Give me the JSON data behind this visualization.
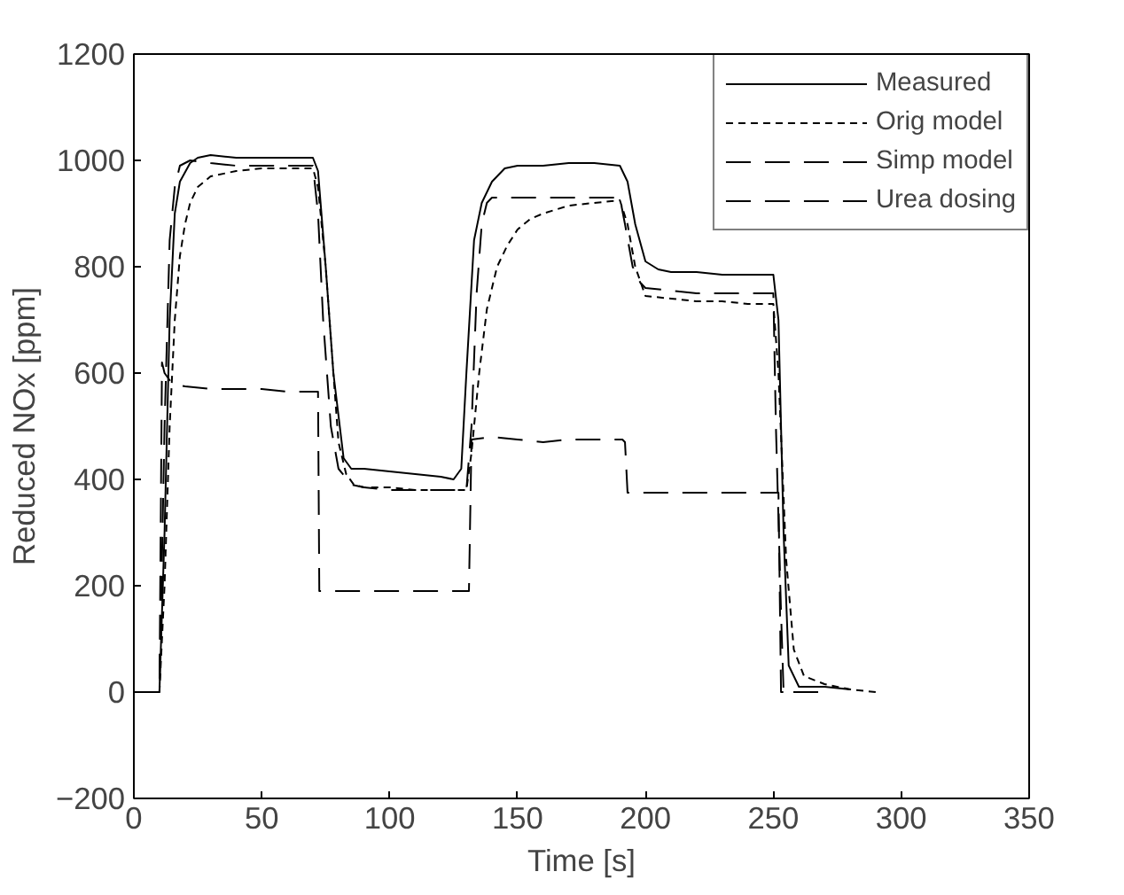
{
  "chart_data": {
    "type": "line",
    "xlabel": "Time [s]",
    "ylabel": "Reduced NOx [ppm]",
    "xlim": [
      0,
      350
    ],
    "ylim": [
      -200,
      1200
    ],
    "xticks": [
      0,
      50,
      100,
      150,
      200,
      250,
      300,
      350
    ],
    "yticks": [
      -200,
      0,
      200,
      400,
      600,
      800,
      1000,
      1200
    ],
    "grid": false,
    "legend": "top right",
    "marker": "none",
    "series": [
      {
        "name": "Measured",
        "color": "#000000",
        "line_style": "solid",
        "x": [
          0,
          10,
          12,
          14,
          16,
          18,
          22,
          25,
          30,
          40,
          50,
          60,
          70,
          72,
          75,
          78,
          82,
          85,
          90,
          100,
          110,
          120,
          125,
          128,
          130,
          133,
          136,
          140,
          145,
          150,
          160,
          170,
          180,
          190,
          193,
          196,
          200,
          205,
          210,
          220,
          230,
          240,
          250,
          252,
          254,
          256,
          260,
          270,
          280
        ],
        "values": [
          0,
          0,
          300,
          700,
          900,
          960,
          995,
          1005,
          1010,
          1005,
          1005,
          1005,
          1005,
          980,
          800,
          600,
          440,
          420,
          420,
          415,
          410,
          405,
          400,
          420,
          600,
          850,
          920,
          960,
          985,
          990,
          990,
          995,
          995,
          990,
          960,
          880,
          810,
          795,
          790,
          790,
          785,
          785,
          785,
          700,
          300,
          50,
          10,
          10,
          5
        ]
      },
      {
        "name": "Orig model",
        "color": "#000000",
        "line_style": "dotted",
        "x": [
          0,
          10,
          12,
          14,
          16,
          18,
          20,
          22,
          25,
          30,
          40,
          50,
          60,
          70,
          72,
          75,
          78,
          80,
          83,
          86,
          90,
          100,
          110,
          120,
          130,
          132,
          135,
          138,
          142,
          146,
          150,
          155,
          160,
          170,
          180,
          190,
          193,
          196,
          200,
          210,
          220,
          230,
          240,
          250,
          252,
          255,
          258,
          262,
          270,
          280,
          290
        ],
        "values": [
          0,
          0,
          200,
          500,
          700,
          820,
          880,
          920,
          950,
          970,
          980,
          985,
          985,
          985,
          950,
          800,
          600,
          470,
          410,
          390,
          385,
          385,
          380,
          380,
          380,
          450,
          600,
          720,
          800,
          840,
          870,
          890,
          900,
          915,
          920,
          925,
          880,
          800,
          745,
          740,
          735,
          735,
          730,
          730,
          600,
          250,
          80,
          30,
          15,
          5,
          0
        ]
      },
      {
        "name": "Simp model",
        "color": "#000000",
        "line_style": "dashed",
        "x": [
          0,
          10,
          12,
          14,
          16,
          18,
          22,
          30,
          40,
          50,
          60,
          70,
          72,
          74,
          77,
          80,
          85,
          90,
          100,
          110,
          120,
          130,
          132,
          134,
          136,
          138,
          140,
          150,
          160,
          170,
          180,
          190,
          192,
          195,
          198,
          200,
          210,
          220,
          230,
          240,
          250,
          251,
          253,
          254,
          256,
          260,
          270
        ],
        "values": [
          0,
          0,
          500,
          850,
          950,
          990,
          1000,
          995,
          990,
          990,
          990,
          990,
          900,
          700,
          500,
          420,
          390,
          385,
          380,
          380,
          380,
          380,
          500,
          750,
          880,
          920,
          930,
          930,
          930,
          930,
          930,
          930,
          880,
          800,
          770,
          760,
          755,
          750,
          750,
          750,
          750,
          500,
          150,
          0,
          0,
          0,
          0
        ]
      },
      {
        "name": "Urea dosing",
        "color": "#000000",
        "line_style": "dashed",
        "x": [
          0,
          10,
          11,
          12,
          15,
          20,
          30,
          40,
          50,
          60,
          70,
          72,
          72.5,
          80,
          90,
          100,
          110,
          120,
          131,
          132,
          140,
          150,
          160,
          170,
          180,
          191,
          192,
          193,
          200,
          210,
          220,
          230,
          240,
          251,
          252,
          253,
          260,
          265
        ],
        "values": [
          0,
          0,
          620,
          600,
          580,
          575,
          570,
          570,
          570,
          565,
          565,
          565,
          190,
          190,
          190,
          190,
          190,
          190,
          190,
          475,
          480,
          475,
          470,
          475,
          475,
          475,
          470,
          375,
          375,
          375,
          375,
          375,
          375,
          375,
          375,
          0,
          0,
          0
        ]
      }
    ]
  }
}
